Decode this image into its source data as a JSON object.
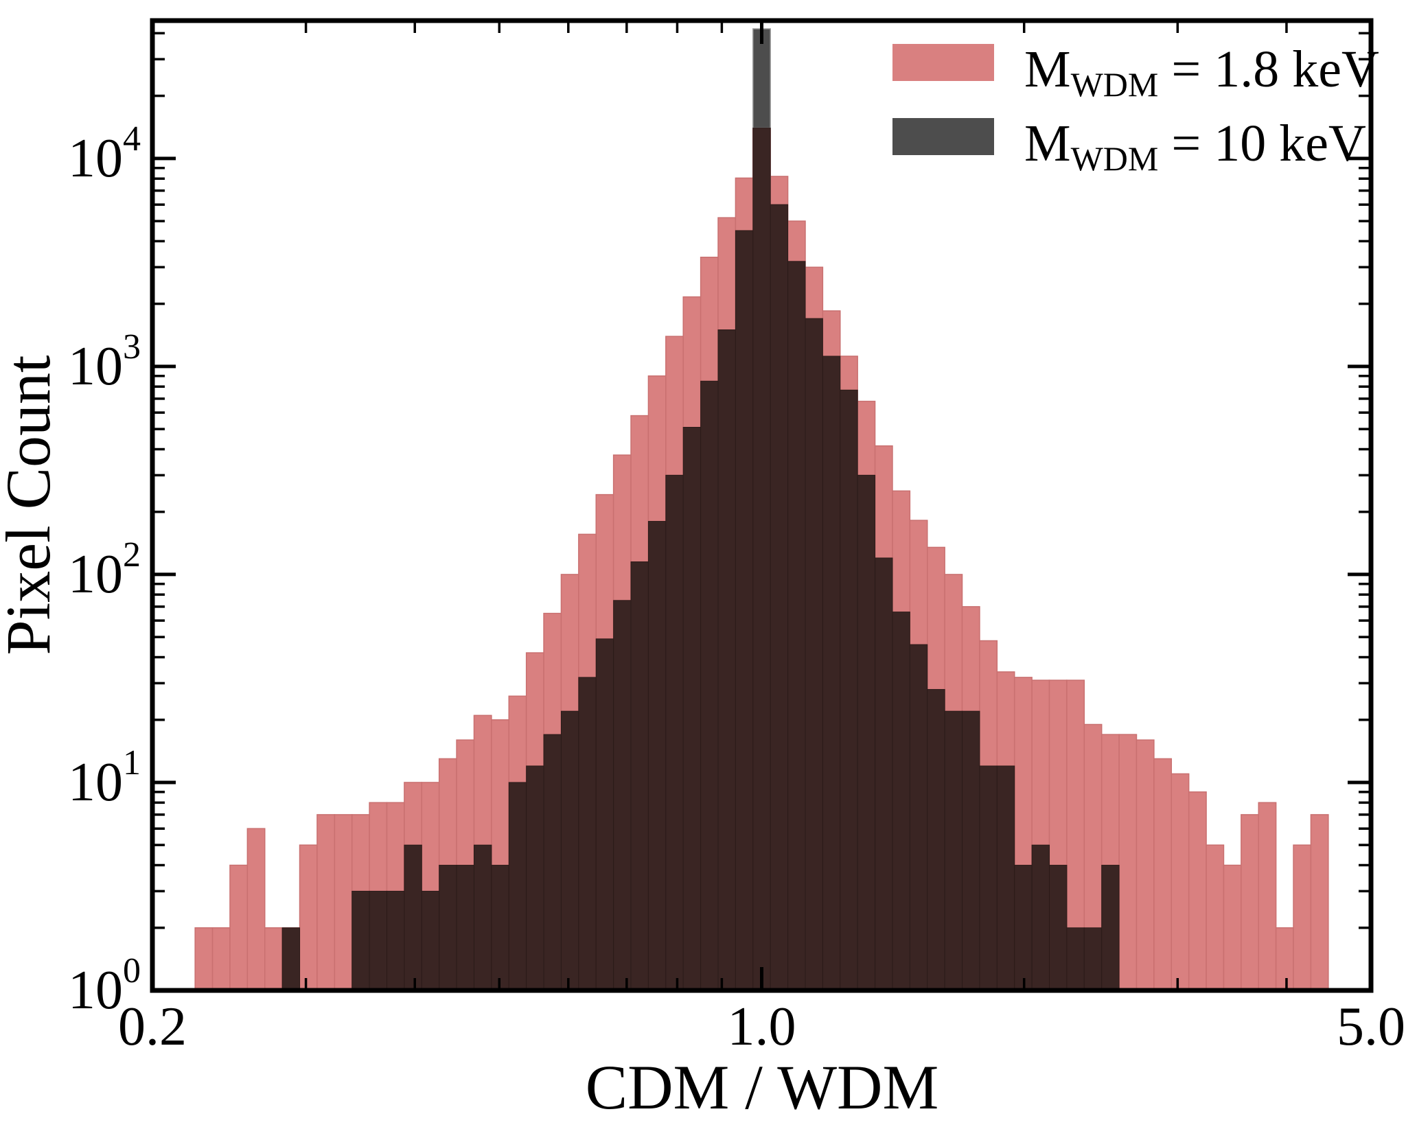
{
  "figure": {
    "background": "#ffffff",
    "axis_color": "#000000",
    "frame_line_width": 7
  },
  "chart_data": {
    "type": "bar",
    "subtype": "overlaid-histogram",
    "title": "",
    "xlabel": "CDM / WDM",
    "ylabel": "Pixel Count",
    "x_scale": "log",
    "y_scale": "log",
    "xlim": [
      0.2,
      5.0
    ],
    "ylim": [
      1,
      46000
    ],
    "x_axis": {
      "major_ticks": [
        0.2,
        1.0,
        5.0
      ],
      "major_tick_labels": [
        "0.2",
        "1.0",
        "5.0"
      ],
      "minor_ticks": [
        0.3,
        0.4,
        0.5,
        0.6,
        0.7,
        0.8,
        0.9,
        2,
        3,
        4
      ]
    },
    "y_axis": {
      "major_tick_exponents": [
        0,
        1,
        2,
        3,
        4
      ],
      "major_tick_base": "10",
      "minor_tick_mantissas": [
        2,
        3,
        4,
        5,
        6,
        7,
        8,
        9
      ]
    },
    "bins": {
      "ratio_per_bin": 1.047129,
      "description": "log-spaced bins of width 0.02 dex; bin k is centered at 1.047129^k"
    },
    "legend": {
      "position": "upper right",
      "entries": [
        {
          "prefix": "M",
          "sub": "WDM",
          "suffix": " = 1.8 keV",
          "swatch_color": "#d98080"
        },
        {
          "prefix": "M",
          "sub": "WDM",
          "suffix": " = 10 keV",
          "swatch_color": "#4d4d4d"
        }
      ]
    },
    "series": [
      {
        "name": "M_WDM = 1.8 keV",
        "color": "#d98080",
        "edge_color": "#c97070",
        "k_start": -32,
        "counts": [
          2,
          2,
          4,
          6,
          2,
          2,
          5,
          7,
          7,
          7,
          8,
          8,
          10,
          10,
          13,
          16,
          21,
          20,
          26,
          42,
          65,
          100,
          156,
          242,
          375,
          580,
          900,
          1395,
          2160,
          3350,
          5190,
          8050,
          14000,
          8200,
          5000,
          3000,
          1850,
          1120,
          680,
          415,
          252,
          182,
          135,
          100,
          70,
          48,
          34,
          32,
          31,
          31,
          31,
          19,
          17,
          17,
          16,
          13,
          11,
          9,
          5,
          4,
          7,
          8,
          2,
          5,
          7
        ]
      },
      {
        "name": "M_WDM = 10 keV",
        "color": "#4d4d4d",
        "edge_color": "#9a9a9a",
        "overlap_color": "#3a2523",
        "overlap_edge_color": "#2b1b19",
        "k_start": -27,
        "counts": [
          2,
          0,
          0,
          0,
          3,
          3,
          3,
          5,
          3,
          4,
          4,
          5,
          4,
          10,
          12,
          17,
          22,
          32,
          49,
          75,
          115,
          180,
          300,
          510,
          850,
          1500,
          4500,
          42000,
          6000,
          3200,
          1700,
          1120,
          770,
          300,
          120,
          66,
          46,
          28,
          22,
          22,
          12,
          12,
          4,
          5,
          4,
          2,
          2,
          4
        ]
      }
    ]
  }
}
